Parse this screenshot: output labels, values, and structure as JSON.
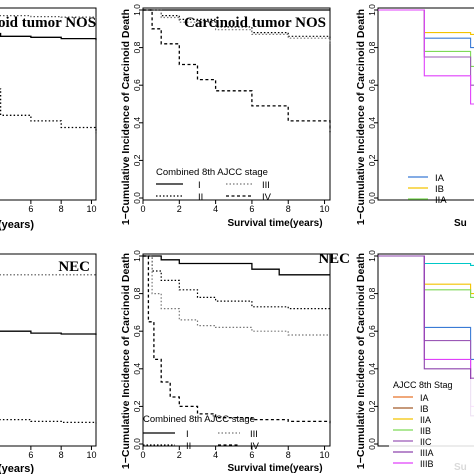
{
  "chart_data": [
    {
      "panel": "top-left",
      "type": "line",
      "title": "Carcinoid tumor NOS",
      "title_visible": "oid tumor NOS",
      "xlabel_visible": "(years)",
      "x_ticks": [
        6,
        8,
        10
      ],
      "xlim": [
        0,
        10.3
      ],
      "ylim": [
        0,
        1
      ],
      "series": [
        {
          "style": "dotted-upper",
          "x": [
            0,
            6,
            8,
            10.3
          ],
          "y": [
            0.97,
            0.965,
            0.962,
            0.96
          ]
        },
        {
          "style": "solid",
          "x": [
            0,
            4,
            6,
            8,
            10.3
          ],
          "y": [
            0.875,
            0.86,
            0.855,
            0.848,
            0.84
          ]
        },
        {
          "style": "dotted-lower",
          "x": [
            0,
            4,
            6,
            8,
            10.3
          ],
          "y": [
            0.58,
            0.44,
            0.41,
            0.375,
            0.345
          ]
        }
      ]
    },
    {
      "panel": "top-center",
      "type": "line",
      "title": "Carcinoid tumor NOS",
      "xlabel": "Survival time(years)",
      "ylabel": "1−Cumulative Incidence of Carcinoid Death",
      "x_ticks": [
        0,
        2,
        4,
        6,
        8,
        10
      ],
      "y_ticks": [
        0.0,
        0.2,
        0.4,
        0.6,
        0.8,
        1.0
      ],
      "xlim": [
        0,
        10.3
      ],
      "ylim": [
        0,
        1
      ],
      "legend": {
        "title": "Combined 8th AJCC stage",
        "labels": [
          "I",
          "II",
          "III",
          "IV"
        ],
        "position": "bottom-left"
      },
      "series": [
        {
          "name": "I",
          "style": "solid",
          "x": [
            0,
            2,
            4,
            6,
            8,
            10.3
          ],
          "y": [
            1.0,
            1.0,
            1.0,
            1.0,
            1.0,
            1.0
          ]
        },
        {
          "name": "II",
          "style": "dotted",
          "x": [
            0,
            1,
            2,
            4,
            6,
            8,
            10.3
          ],
          "y": [
            1.0,
            0.97,
            0.95,
            0.91,
            0.88,
            0.86,
            0.84
          ]
        },
        {
          "name": "III",
          "style": "dotted-light",
          "x": [
            0,
            1,
            2,
            4,
            6,
            8,
            10.3
          ],
          "y": [
            1.0,
            0.96,
            0.935,
            0.895,
            0.87,
            0.85,
            0.82
          ]
        },
        {
          "name": "IV",
          "style": "dashed",
          "x": [
            0,
            0.5,
            1,
            2,
            3,
            4,
            6,
            8,
            10.3
          ],
          "y": [
            1.0,
            0.9,
            0.82,
            0.71,
            0.63,
            0.57,
            0.49,
            0.41,
            0.35
          ]
        }
      ]
    },
    {
      "panel": "top-right",
      "type": "line",
      "ylabel": "1−Cumulative Incidence of Carcinoid Death",
      "xlabel_visible": "Su",
      "y_ticks": [
        0.0,
        0.2,
        0.4,
        0.6,
        0.8,
        1.0
      ],
      "ylim": [
        0,
        1
      ],
      "legend": {
        "labels": [
          "IA",
          "IB",
          "IIA"
        ],
        "colors": [
          "#3a7bd5",
          "#f3c300",
          "#7ed957"
        ]
      },
      "series": [
        {
          "name": "IA",
          "color": "#3a7bd5",
          "x": [
            0,
            1,
            2,
            3
          ],
          "y": [
            1.0,
            0.85,
            0.8,
            0.78
          ]
        },
        {
          "name": "IB",
          "color": "#f3c300",
          "x": [
            0,
            1,
            2,
            3
          ],
          "y": [
            1.0,
            0.88,
            0.87,
            0.87
          ]
        },
        {
          "name": "IIA",
          "color": "#7ed957",
          "x": [
            0,
            1,
            2,
            3
          ],
          "y": [
            1.0,
            0.78,
            0.7,
            0.68
          ]
        },
        {
          "color": "#9b59b6",
          "x": [
            0,
            1,
            2,
            3
          ],
          "y": [
            1.0,
            0.75,
            0.6,
            0.52
          ]
        },
        {
          "color": "#e040fb",
          "x": [
            0,
            1,
            2,
            3
          ],
          "y": [
            1.0,
            0.65,
            0.5,
            0.38
          ]
        }
      ]
    },
    {
      "panel": "bottom-left",
      "type": "line",
      "title": "NEC",
      "xlabel_visible": "(years)",
      "x_ticks": [
        6,
        8,
        10
      ],
      "xlim": [
        0,
        10.3
      ],
      "ylim": [
        0,
        1
      ],
      "series": [
        {
          "style": "dotted-upper",
          "x": [
            0,
            6,
            8,
            10.3
          ],
          "y": [
            0.9,
            0.9,
            0.9,
            0.9
          ]
        },
        {
          "style": "solid",
          "x": [
            0,
            6,
            8,
            10.3
          ],
          "y": [
            0.6,
            0.59,
            0.585,
            0.58
          ]
        },
        {
          "style": "dotted-lower",
          "x": [
            0,
            6,
            8,
            10.3
          ],
          "y": [
            0.13,
            0.12,
            0.115,
            0.11
          ]
        }
      ]
    },
    {
      "panel": "bottom-center",
      "type": "line",
      "title": "NEC",
      "xlabel": "Survival time(years)",
      "ylabel": "1−Cumulative Incidence of Carcinoid Death",
      "x_ticks": [
        0,
        2,
        4,
        6,
        8,
        10
      ],
      "y_ticks": [
        0.0,
        0.2,
        0.4,
        0.6,
        0.8,
        1.0
      ],
      "xlim": [
        0,
        10.3
      ],
      "ylim": [
        0,
        1
      ],
      "legend": {
        "title": "Combined 8th AJCC stage",
        "labels": [
          "I",
          "II",
          "III",
          "IV"
        ],
        "position": "bottom-left"
      },
      "series": [
        {
          "name": "I",
          "style": "solid",
          "x": [
            0,
            1,
            2,
            4,
            5,
            6,
            7.5,
            10.3
          ],
          "y": [
            1.0,
            0.98,
            0.96,
            0.96,
            0.96,
            0.93,
            0.9,
            0.9
          ]
        },
        {
          "name": "II",
          "style": "dotted",
          "x": [
            0,
            0.5,
            1,
            2,
            3,
            4,
            6,
            8,
            10.3
          ],
          "y": [
            1.0,
            0.92,
            0.87,
            0.82,
            0.78,
            0.76,
            0.73,
            0.72,
            0.72
          ]
        },
        {
          "name": "III",
          "style": "dotted-light",
          "x": [
            0,
            0.5,
            1,
            2,
            3,
            4,
            6,
            8,
            10.3
          ],
          "y": [
            1.0,
            0.8,
            0.72,
            0.66,
            0.63,
            0.62,
            0.6,
            0.58,
            0.58
          ]
        },
        {
          "name": "IV",
          "style": "dashed",
          "x": [
            0,
            0.3,
            0.6,
            1,
            1.5,
            2,
            3,
            4,
            6,
            8,
            10.3
          ],
          "y": [
            1.0,
            0.65,
            0.45,
            0.33,
            0.25,
            0.2,
            0.16,
            0.14,
            0.13,
            0.12,
            0.11
          ]
        }
      ]
    },
    {
      "panel": "bottom-right",
      "type": "line",
      "ylabel": "1−Cumulative Incidence of Carcinoid Death",
      "xlabel_visible": "Su",
      "y_ticks": [
        0.0,
        0.2,
        0.4,
        0.6,
        0.8,
        1.0
      ],
      "ylim": [
        0,
        1
      ],
      "legend": {
        "title": "AJCC 8th Stag",
        "labels": [
          "IA",
          "IB",
          "IIA",
          "IIB",
          "IIC",
          "IIIA",
          "IIIB"
        ],
        "colors": [
          "#e8742b",
          "#a35c2a",
          "#f3c300",
          "#7ed957",
          "#9b59b6",
          "#8e44ad",
          "#e040fb"
        ]
      },
      "series": [
        {
          "color": "#00c8c8",
          "x": [
            0,
            1,
            2,
            3
          ],
          "y": [
            1.0,
            0.96,
            0.95,
            0.95
          ]
        },
        {
          "color": "#f3c300",
          "x": [
            0,
            1,
            2,
            3
          ],
          "y": [
            1.0,
            0.85,
            0.8,
            0.78
          ]
        },
        {
          "color": "#7ed957",
          "x": [
            0,
            1,
            2,
            3
          ],
          "y": [
            1.0,
            0.82,
            0.78,
            0.75
          ]
        },
        {
          "color": "#3a7bd5",
          "x": [
            0,
            1,
            2,
            3
          ],
          "y": [
            1.0,
            0.62,
            0.45,
            0.38
          ]
        },
        {
          "color": "#9b59b6",
          "x": [
            0,
            1,
            2,
            3
          ],
          "y": [
            1.0,
            0.55,
            0.35,
            0.25
          ]
        },
        {
          "color": "#e040fb",
          "x": [
            0,
            1,
            2,
            3
          ],
          "y": [
            1.0,
            0.45,
            0.2,
            0.1
          ]
        },
        {
          "color": "#8e44ad",
          "x": [
            0,
            1,
            2,
            3
          ],
          "y": [
            1.0,
            0.4,
            0.15,
            0.05
          ]
        }
      ]
    }
  ]
}
